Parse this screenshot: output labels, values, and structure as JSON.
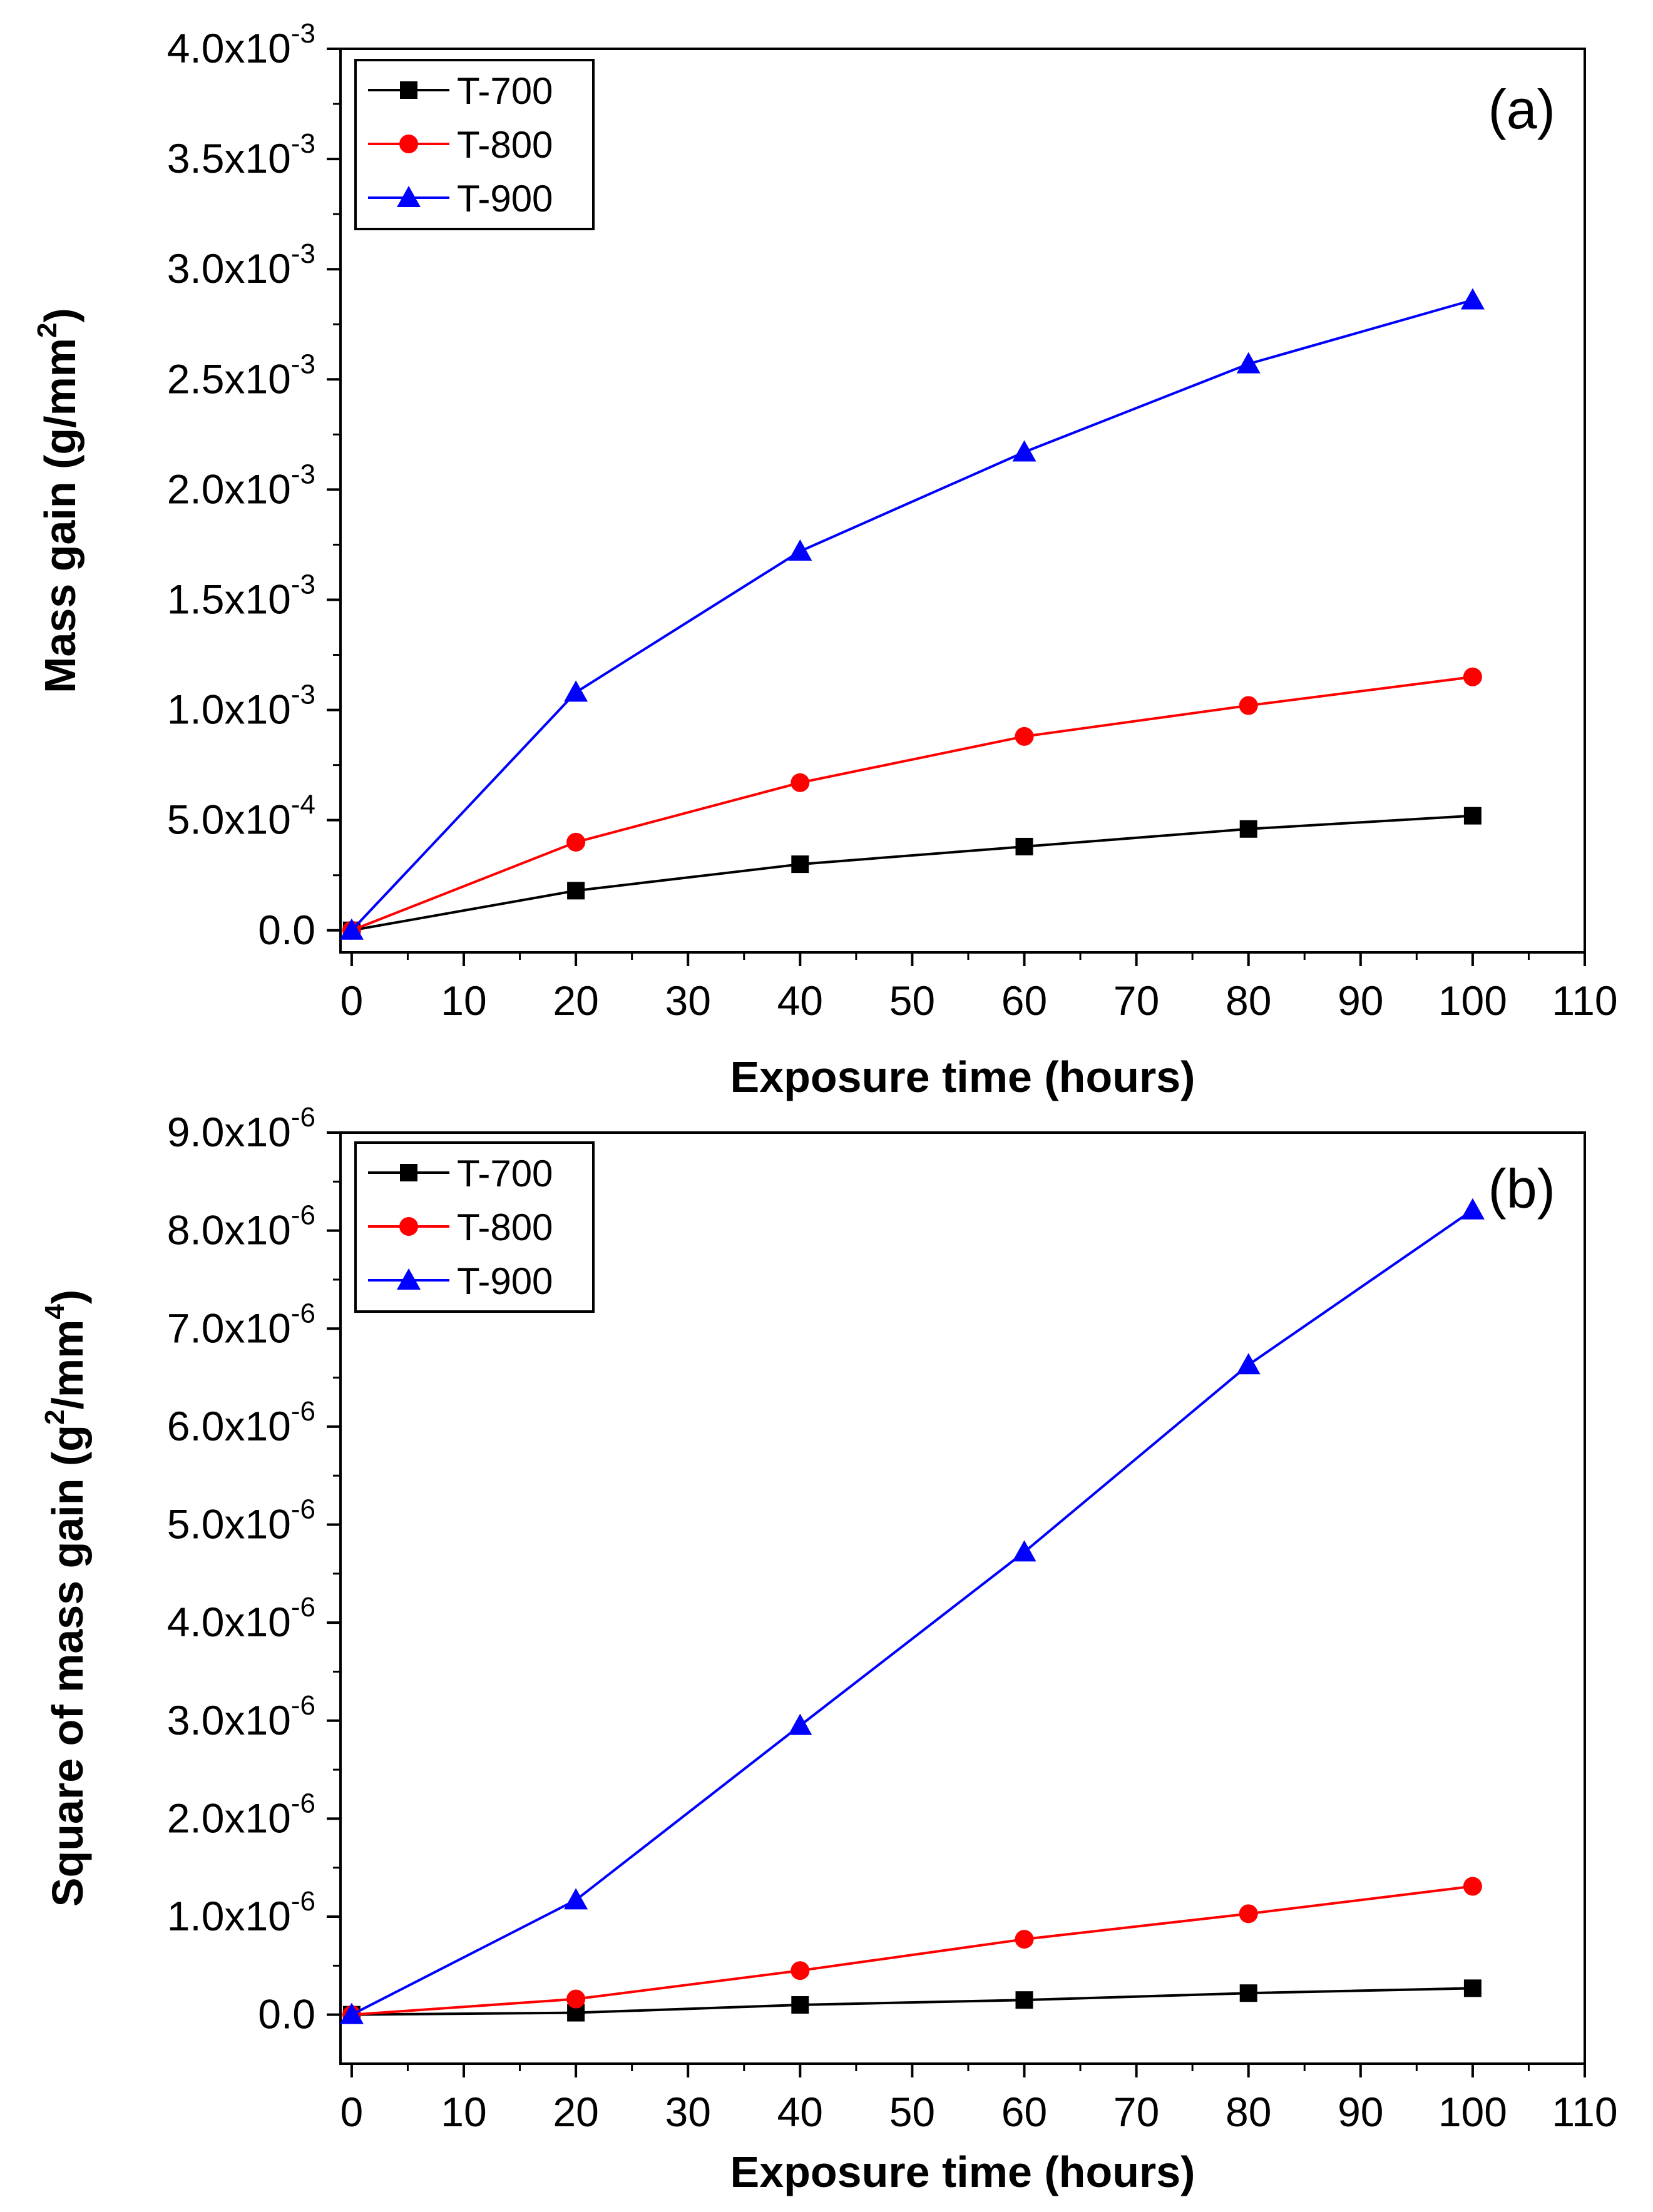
{
  "chart_data": [
    {
      "type": "line",
      "panel_label": "(a)",
      "xlabel": "Exposure time (hours)",
      "ylabel": "Mass gain",
      "yunit": "(g/mm",
      "yunit_exp": "2",
      "yunit_close": ")",
      "xlim": [
        -1,
        110
      ],
      "ylim": [
        -0.0001,
        0.004
      ],
      "x_ticks": [
        {
          "value": 0,
          "label": "0"
        },
        {
          "value": 10,
          "label": "10"
        },
        {
          "value": 20,
          "label": "20"
        },
        {
          "value": 30,
          "label": "30"
        },
        {
          "value": 40,
          "label": "40"
        },
        {
          "value": 50,
          "label": "50"
        },
        {
          "value": 60,
          "label": "60"
        },
        {
          "value": 70,
          "label": "70"
        },
        {
          "value": 80,
          "label": "80"
        },
        {
          "value": 90,
          "label": "90"
        },
        {
          "value": 100,
          "label": "100"
        },
        {
          "value": 110,
          "label": "110"
        }
      ],
      "y_ticks": [
        {
          "value": 0,
          "mant": "0.0",
          "exp": ""
        },
        {
          "value": 0.0005,
          "mant": "5.0x10",
          "exp": "-4"
        },
        {
          "value": 0.001,
          "mant": "1.0x10",
          "exp": "-3"
        },
        {
          "value": 0.0015,
          "mant": "1.5x10",
          "exp": "-3"
        },
        {
          "value": 0.002,
          "mant": "2.0x10",
          "exp": "-3"
        },
        {
          "value": 0.0025,
          "mant": "2.5x10",
          "exp": "-3"
        },
        {
          "value": 0.003,
          "mant": "3.0x10",
          "exp": "-3"
        },
        {
          "value": 0.0035,
          "mant": "3.5x10",
          "exp": "-3"
        },
        {
          "value": 0.004,
          "mant": "4.0x10",
          "exp": "-3"
        }
      ],
      "x": [
        0,
        20,
        40,
        60,
        80,
        100
      ],
      "series": [
        {
          "name": "T-700",
          "color": "#000000",
          "marker": "square",
          "values": [
            0,
            0.00018,
            0.0003,
            0.00038,
            0.00046,
            0.00052
          ]
        },
        {
          "name": "T-800",
          "color": "#ff0000",
          "marker": "circle",
          "values": [
            0,
            0.0004,
            0.00067,
            0.00088,
            0.00102,
            0.00115
          ]
        },
        {
          "name": "T-900",
          "color": "#0000ff",
          "marker": "triangle",
          "values": [
            0,
            0.00108,
            0.00172,
            0.00217,
            0.00257,
            0.00286
          ]
        }
      ],
      "legend_position": "top-left"
    },
    {
      "type": "line",
      "panel_label": "(b)",
      "xlabel": "Exposure time (hours)",
      "ylabel": "Square of mass gain",
      "yunit": "(g",
      "yunit_exp": "2",
      "yunit_mid": "/mm",
      "yunit_exp2": "4",
      "yunit_close": ")",
      "xlim": [
        -1,
        110
      ],
      "ylim": [
        -5e-07,
        9e-06
      ],
      "x_ticks": [
        {
          "value": 0,
          "label": "0"
        },
        {
          "value": 10,
          "label": "10"
        },
        {
          "value": 20,
          "label": "20"
        },
        {
          "value": 30,
          "label": "30"
        },
        {
          "value": 40,
          "label": "40"
        },
        {
          "value": 50,
          "label": "50"
        },
        {
          "value": 60,
          "label": "60"
        },
        {
          "value": 70,
          "label": "70"
        },
        {
          "value": 80,
          "label": "80"
        },
        {
          "value": 90,
          "label": "90"
        },
        {
          "value": 100,
          "label": "100"
        },
        {
          "value": 110,
          "label": "110"
        }
      ],
      "y_ticks": [
        {
          "value": 0,
          "mant": "0.0",
          "exp": ""
        },
        {
          "value": 1e-06,
          "mant": "1.0x10",
          "exp": "-6"
        },
        {
          "value": 2e-06,
          "mant": "2.0x10",
          "exp": "-6"
        },
        {
          "value": 3e-06,
          "mant": "3.0x10",
          "exp": "-6"
        },
        {
          "value": 4e-06,
          "mant": "4.0x10",
          "exp": "-6"
        },
        {
          "value": 5e-06,
          "mant": "5.0x10",
          "exp": "-6"
        },
        {
          "value": 6e-06,
          "mant": "6.0x10",
          "exp": "-6"
        },
        {
          "value": 7e-06,
          "mant": "7.0x10",
          "exp": "-6"
        },
        {
          "value": 8e-06,
          "mant": "8.0x10",
          "exp": "-6"
        },
        {
          "value": 9e-06,
          "mant": "9.0x10",
          "exp": "-6"
        }
      ],
      "x": [
        0,
        20,
        40,
        60,
        80,
        100
      ],
      "series": [
        {
          "name": "T-700",
          "color": "#000000",
          "marker": "square",
          "values": [
            0,
            2e-08,
            1e-07,
            1.5e-07,
            2.2e-07,
            2.7e-07
          ]
        },
        {
          "name": "T-800",
          "color": "#ff0000",
          "marker": "circle",
          "values": [
            0,
            1.6e-07,
            4.5e-07,
            7.7e-07,
            1.03e-06,
            1.31e-06
          ]
        },
        {
          "name": "T-900",
          "color": "#0000ff",
          "marker": "triangle",
          "values": [
            0,
            1.17e-06,
            2.95e-06,
            4.72e-06,
            6.63e-06,
            8.21e-06
          ]
        }
      ],
      "legend_position": "top-left"
    }
  ]
}
